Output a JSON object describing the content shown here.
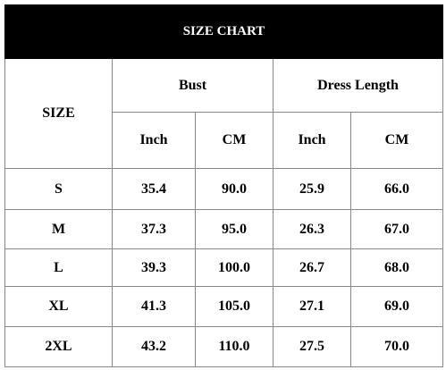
{
  "title": "SIZE CHART",
  "header": {
    "size": "SIZE",
    "groups": [
      "Bust",
      "Dress Length"
    ],
    "units": [
      "Inch",
      "CM",
      "Inch",
      "CM"
    ]
  },
  "table": {
    "rows": [
      [
        "S",
        "35.4",
        "90.0",
        "25.9",
        "66.0"
      ],
      [
        "M",
        "37.3",
        "95.0",
        "26.3",
        "67.0"
      ],
      [
        "L",
        "39.3",
        "100.0",
        "26.7",
        "68.0"
      ],
      [
        "XL",
        "41.3",
        "105.0",
        "27.1",
        "69.0"
      ],
      [
        "2XL",
        "43.2",
        "110.0",
        "27.5",
        "70.0"
      ]
    ]
  }
}
